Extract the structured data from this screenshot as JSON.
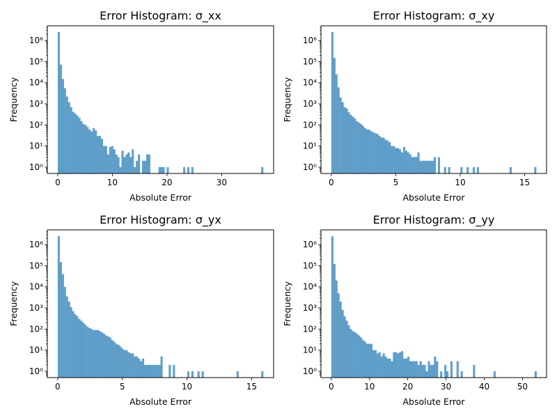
{
  "chart_data": [
    {
      "type": "bar",
      "title": "Error Histogram: σ_xx",
      "xlabel": "Absolute Error",
      "ylabel": "Frequency",
      "yscale": "log",
      "xlim": [
        -1.9,
        39.5
      ],
      "xticks": [
        0,
        10,
        20,
        30
      ],
      "xtick_labels": [
        "0",
        "10",
        "20",
        "30"
      ],
      "ylim": [
        0.5,
        5000000
      ],
      "yticks": [
        1,
        10,
        100,
        1000,
        10000,
        100000,
        1000000
      ],
      "ytick_labels": [
        "10⁰",
        "10¹",
        "10²",
        "10³",
        "10⁴",
        "10⁵",
        "10⁶"
      ],
      "bin_range": [
        0,
        37.6
      ],
      "counts": [
        2500000,
        72000,
        15000,
        5500,
        2200,
        1200,
        700,
        420,
        350,
        280,
        220,
        150,
        110,
        100,
        80,
        60,
        50,
        70,
        55,
        30,
        30,
        22,
        10,
        10,
        4,
        9,
        10,
        7,
        4,
        3,
        1,
        6,
        3,
        4,
        5,
        3,
        7,
        1,
        2,
        4,
        0,
        2,
        2,
        4,
        4,
        0,
        0,
        0,
        0,
        1,
        1,
        1,
        0,
        1,
        0,
        0,
        0,
        0,
        0,
        0,
        0,
        1,
        0,
        1,
        0,
        1,
        0,
        0,
        0,
        0,
        0,
        0,
        0,
        0,
        0,
        0,
        0,
        0,
        0,
        0,
        0,
        0,
        0,
        0,
        0,
        0,
        0,
        0,
        0,
        0,
        0,
        0,
        0,
        0,
        0,
        0,
        0,
        0,
        0,
        1
      ]
    },
    {
      "type": "bar",
      "title": "Error Histogram: σ_xy",
      "xlabel": "Absolute Error",
      "ylabel": "Frequency",
      "yscale": "log",
      "xlim": [
        -0.8,
        16.7
      ],
      "xticks": [
        0,
        5,
        10,
        15
      ],
      "xtick_labels": [
        "0",
        "5",
        "10",
        "15"
      ],
      "ylim": [
        0.5,
        5000000
      ],
      "yticks": [
        1,
        10,
        100,
        1000,
        10000,
        100000,
        1000000
      ],
      "ytick_labels": [
        "10⁰",
        "10¹",
        "10²",
        "10³",
        "10⁴",
        "10⁵",
        "10⁶"
      ],
      "bin_range": [
        0,
        15.9
      ],
      "counts": [
        2500000,
        150000,
        25000,
        6000,
        2000,
        1200,
        700,
        600,
        400,
        300,
        250,
        200,
        150,
        130,
        110,
        90,
        70,
        60,
        60,
        50,
        45,
        40,
        38,
        30,
        25,
        25,
        20,
        18,
        15,
        10,
        10,
        8,
        8,
        7,
        5,
        9,
        6,
        5,
        4,
        3,
        3,
        3,
        5,
        2,
        2,
        2,
        2,
        2,
        2,
        2,
        3,
        0,
        3,
        0,
        0,
        1,
        0,
        1,
        0,
        0,
        0,
        0,
        0,
        1,
        0,
        0,
        1,
        0,
        0,
        1,
        0,
        1,
        0,
        0,
        0,
        0,
        0,
        0,
        0,
        0,
        0,
        0,
        0,
        0,
        0,
        0,
        0,
        1,
        0,
        0,
        0,
        0,
        0,
        0,
        0,
        0,
        0,
        0,
        0,
        1
      ]
    },
    {
      "type": "bar",
      "title": "Error Histogram: σ_yx",
      "xlabel": "Absolute Error",
      "ylabel": "Frequency",
      "yscale": "log",
      "xlim": [
        -0.8,
        16.7
      ],
      "xticks": [
        0,
        5,
        10,
        15
      ],
      "xtick_labels": [
        "0",
        "5",
        "10",
        "15"
      ],
      "ylim": [
        0.5,
        5000000
      ],
      "yticks": [
        1,
        10,
        100,
        1000,
        10000,
        100000,
        1000000
      ],
      "ytick_labels": [
        "10⁰",
        "10¹",
        "10²",
        "10³",
        "10⁴",
        "10⁵",
        "10⁶"
      ],
      "bin_range": [
        0,
        15.9
      ],
      "counts": [
        2500000,
        150000,
        40000,
        10000,
        3500,
        2000,
        1100,
        700,
        500,
        400,
        300,
        250,
        200,
        160,
        130,
        110,
        100,
        90,
        90,
        90,
        80,
        70,
        60,
        50,
        45,
        40,
        30,
        25,
        20,
        18,
        15,
        12,
        10,
        10,
        8,
        7,
        7,
        5,
        5,
        4,
        3,
        4,
        2,
        2,
        2,
        2,
        2,
        2,
        2,
        2,
        5,
        0,
        0,
        0,
        2,
        0,
        2,
        0,
        0,
        0,
        0,
        0,
        0,
        1,
        0,
        1,
        0,
        0,
        1,
        0,
        1,
        0,
        0,
        0,
        0,
        0,
        0,
        0,
        0,
        0,
        0,
        0,
        0,
        0,
        0,
        0,
        0,
        1,
        0,
        0,
        0,
        0,
        0,
        0,
        0,
        0,
        0,
        0,
        0,
        1
      ]
    },
    {
      "type": "bar",
      "title": "Error Histogram: σ_yy",
      "xlabel": "Absolute Error",
      "ylabel": "Frequency",
      "yscale": "log",
      "xlim": [
        -2.7,
        56.3
      ],
      "xticks": [
        0,
        10,
        20,
        30,
        40,
        50
      ],
      "xtick_labels": [
        "0",
        "10",
        "20",
        "30",
        "40",
        "50"
      ],
      "ylim": [
        0.5,
        5000000
      ],
      "yticks": [
        1,
        10,
        100,
        1000,
        10000,
        100000,
        1000000
      ],
      "ytick_labels": [
        "10⁰",
        "10¹",
        "10²",
        "10³",
        "10⁴",
        "10⁵",
        "10⁶"
      ],
      "bin_range": [
        0,
        53.7
      ],
      "counts": [
        2500000,
        120000,
        20000,
        5000,
        2000,
        800,
        400,
        250,
        150,
        100,
        80,
        70,
        60,
        50,
        40,
        30,
        25,
        20,
        20,
        20,
        10,
        10,
        7,
        8,
        5,
        7,
        5,
        4,
        4,
        3,
        8,
        8,
        7,
        8,
        9,
        4,
        4,
        5,
        3,
        3,
        3,
        3,
        2,
        3,
        2,
        2,
        1,
        3,
        2,
        2,
        5,
        3,
        0,
        1,
        0,
        2,
        1,
        0,
        3,
        0,
        0,
        3,
        0,
        1,
        0,
        0,
        0,
        0,
        0,
        2,
        0,
        0,
        0,
        0,
        0,
        0,
        0,
        0,
        0,
        1,
        0,
        0,
        0,
        0,
        0,
        0,
        0,
        0,
        0,
        0,
        0,
        0,
        0,
        0,
        0,
        0,
        0,
        0,
        0,
        1
      ]
    }
  ]
}
